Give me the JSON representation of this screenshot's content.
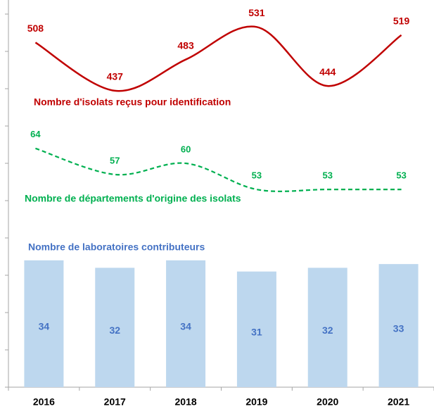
{
  "chart_data": {
    "type": "combo",
    "categories": [
      "2016",
      "2017",
      "2018",
      "2019",
      "2020",
      "2021"
    ],
    "ylim": [
      0,
      100
    ],
    "yticks": [
      0,
      10,
      20,
      30,
      40,
      50,
      60,
      70,
      80,
      90,
      100
    ],
    "y2lim": [
      0,
      550
    ],
    "series": [
      {
        "name": "Nombre d'isolats reçus pour identification",
        "type": "line",
        "color": "#c00000",
        "axis": "y2",
        "dash": false,
        "values": [
          508,
          437,
          483,
          531,
          444,
          519
        ]
      },
      {
        "name": "Nombre de départements d'origine des isolats",
        "type": "line",
        "color": "#00b050",
        "axis": "y",
        "dash": true,
        "values": [
          64,
          57,
          60,
          53,
          53,
          53
        ]
      },
      {
        "name": "Nombre de laboratoires contributeurs",
        "type": "bar",
        "color": "#bdd7ee",
        "label_color": "#4472c4",
        "axis": "y",
        "values": [
          34,
          32,
          34,
          31,
          32,
          33
        ]
      }
    ]
  }
}
